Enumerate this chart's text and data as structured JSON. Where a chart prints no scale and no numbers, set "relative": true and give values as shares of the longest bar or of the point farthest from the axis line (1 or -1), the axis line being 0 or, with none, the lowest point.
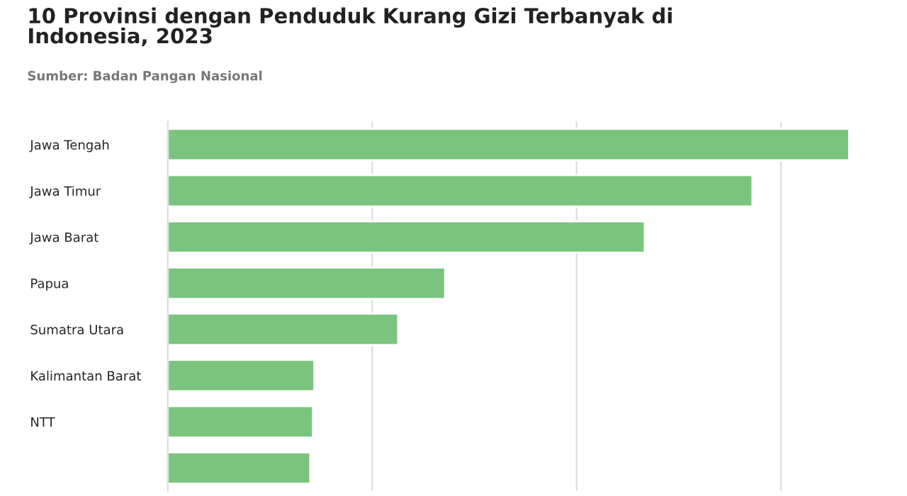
{
  "chart_data": {
    "type": "bar",
    "orientation": "horizontal",
    "relative": true,
    "title": "10 Provinsi dengan Penduduk Kurang Gizi Terbanyak di\nIndonesia, 2023",
    "annotations": [
      "Sumber: Badan Pangan Nasional"
    ],
    "categories": [
      "Jawa Tengah",
      "Jawa Timur",
      "Jawa Barat",
      "Papua",
      "Sumatra Utara",
      "Kalimantan Barat",
      "NTT",
      null
    ],
    "values": [
      1,
      0.858,
      0.7,
      0.407,
      0.338,
      0.215,
      0.213,
      0.209
    ],
    "color": "#7bc47f",
    "grid": "x",
    "legend": false
  }
}
